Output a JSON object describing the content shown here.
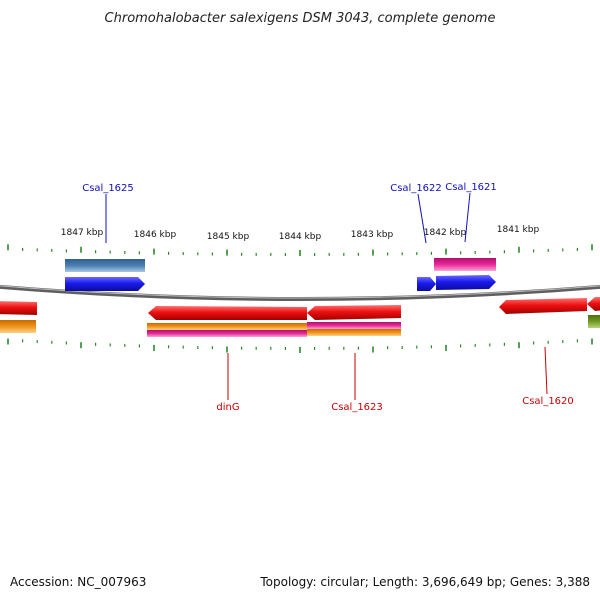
{
  "title": "Chromohalobacter salexigens DSM 3043, complete genome",
  "tick_labels": [
    "1847 kbp",
    "1846 kbp",
    "1845 kbp",
    "1844 kbp",
    "1843 kbp",
    "1842 kbp",
    "1841 kbp"
  ],
  "gene_labels": [
    {
      "name": "Csal_1625",
      "color": "#1010c0"
    },
    {
      "name": "Csal_1622",
      "color": "#1010c0"
    },
    {
      "name": "Csal_1621",
      "color": "#1010c0"
    },
    {
      "name": "dinG",
      "color": "#cc0000"
    },
    {
      "name": "Csal_1623",
      "color": "#cc0000"
    },
    {
      "name": "Csal_1620",
      "color": "#cc0000"
    }
  ],
  "colors": {
    "forward_cds": "#1a1aee",
    "reverse_cds": "#ee1111",
    "gene": "#4a7fb0",
    "pink_feature": "#e8279a",
    "orange_feature": "#f09418",
    "olive_feature": "#6f9a22",
    "ticks": "#2a8a2a",
    "backbone": "#777777"
  },
  "footer": {
    "accession": "Accession: NC_007963",
    "summary": "Topology: circular; Length: 3,696,649 bp; Genes: 3,388"
  }
}
